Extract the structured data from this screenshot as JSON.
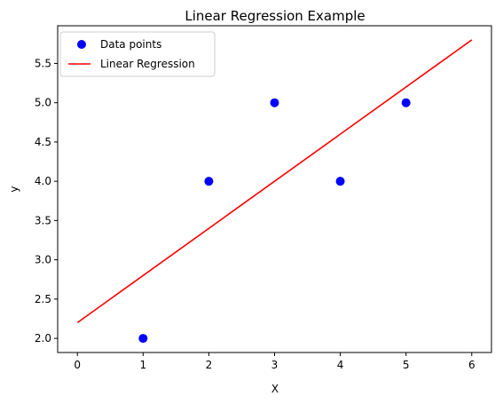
{
  "chart_data": {
    "type": "scatter",
    "title": "Linear Regression Example",
    "xlabel": "X",
    "ylabel": "y",
    "xlim": [
      -0.3,
      6.3
    ],
    "ylim": [
      1.82,
      5.98
    ],
    "xticks": [
      0,
      1,
      2,
      3,
      4,
      5,
      6
    ],
    "yticks": [
      2.0,
      2.5,
      3.0,
      3.5,
      4.0,
      4.5,
      5.0,
      5.5
    ],
    "ytick_labels": [
      "2.0",
      "2.5",
      "3.0",
      "3.5",
      "4.0",
      "4.5",
      "5.0",
      "5.5"
    ],
    "grid": false,
    "legend_position": "top-left",
    "series": [
      {
        "name": "Data points",
        "kind": "scatter",
        "color": "#0000ff",
        "x": [
          1,
          2,
          3,
          4,
          5
        ],
        "y": [
          2,
          4,
          5,
          4,
          5
        ]
      },
      {
        "name": "Linear Regression",
        "kind": "line",
        "color": "#ff0000",
        "x": [
          0,
          6
        ],
        "y": [
          2.2,
          5.8
        ]
      }
    ]
  }
}
